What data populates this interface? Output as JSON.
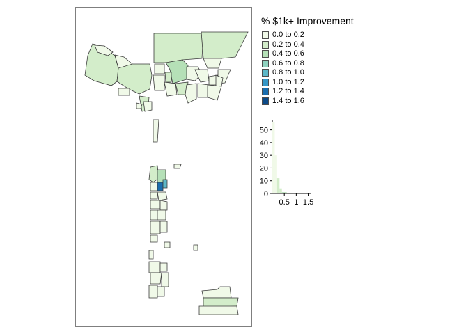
{
  "legend": {
    "title": "% $1k+ Improvement",
    "items": [
      {
        "label": "0.0 to 0.2",
        "color": "#f0f9e8"
      },
      {
        "label": "0.2 to 0.4",
        "color": "#d3edca"
      },
      {
        "label": "0.4 to 0.6",
        "color": "#b5e0b7"
      },
      {
        "label": "0.6 to 0.8",
        "color": "#8fd2bf"
      },
      {
        "label": "0.8 to 1.0",
        "color": "#5db8c8"
      },
      {
        "label": "1.0 to 1.2",
        "color": "#3597c7"
      },
      {
        "label": "1.2 to 1.4",
        "color": "#1a6eaf"
      },
      {
        "label": "1.4 to 1.6",
        "color": "#0b4a88"
      }
    ]
  },
  "colors": {
    "tract_border": "#3a3a3a",
    "frame_border": "#7f7f7f",
    "low": "#f0f9e8",
    "light": "#d3edca",
    "mid": "#b5e0b7",
    "teal": "#5db8c8",
    "dark": "#1a6eaf"
  },
  "chart_data": {
    "type": "bar",
    "title": "",
    "xlabel": "",
    "ylabel": "",
    "x_ticks": [
      "0.5",
      "1",
      "1.5"
    ],
    "y_ticks": [
      "0",
      "10",
      "20",
      "30",
      "40",
      "50"
    ],
    "ylim": [
      0,
      58
    ],
    "xlim": [
      0,
      1.6
    ],
    "bins": [
      {
        "x": 0.05,
        "count": 56
      },
      {
        "x": 0.15,
        "count": 30
      },
      {
        "x": 0.25,
        "count": 12
      },
      {
        "x": 0.35,
        "count": 4
      },
      {
        "x": 0.45,
        "count": 1
      },
      {
        "x": 0.55,
        "count": 1
      },
      {
        "x": 0.65,
        "count": 0.5
      },
      {
        "x": 0.75,
        "count": 0.5
      },
      {
        "x": 0.85,
        "count": 0.5
      },
      {
        "x": 0.95,
        "count": 0.5
      },
      {
        "x": 1.1,
        "count": 0.5
      },
      {
        "x": 1.5,
        "count": 0.5
      }
    ]
  }
}
